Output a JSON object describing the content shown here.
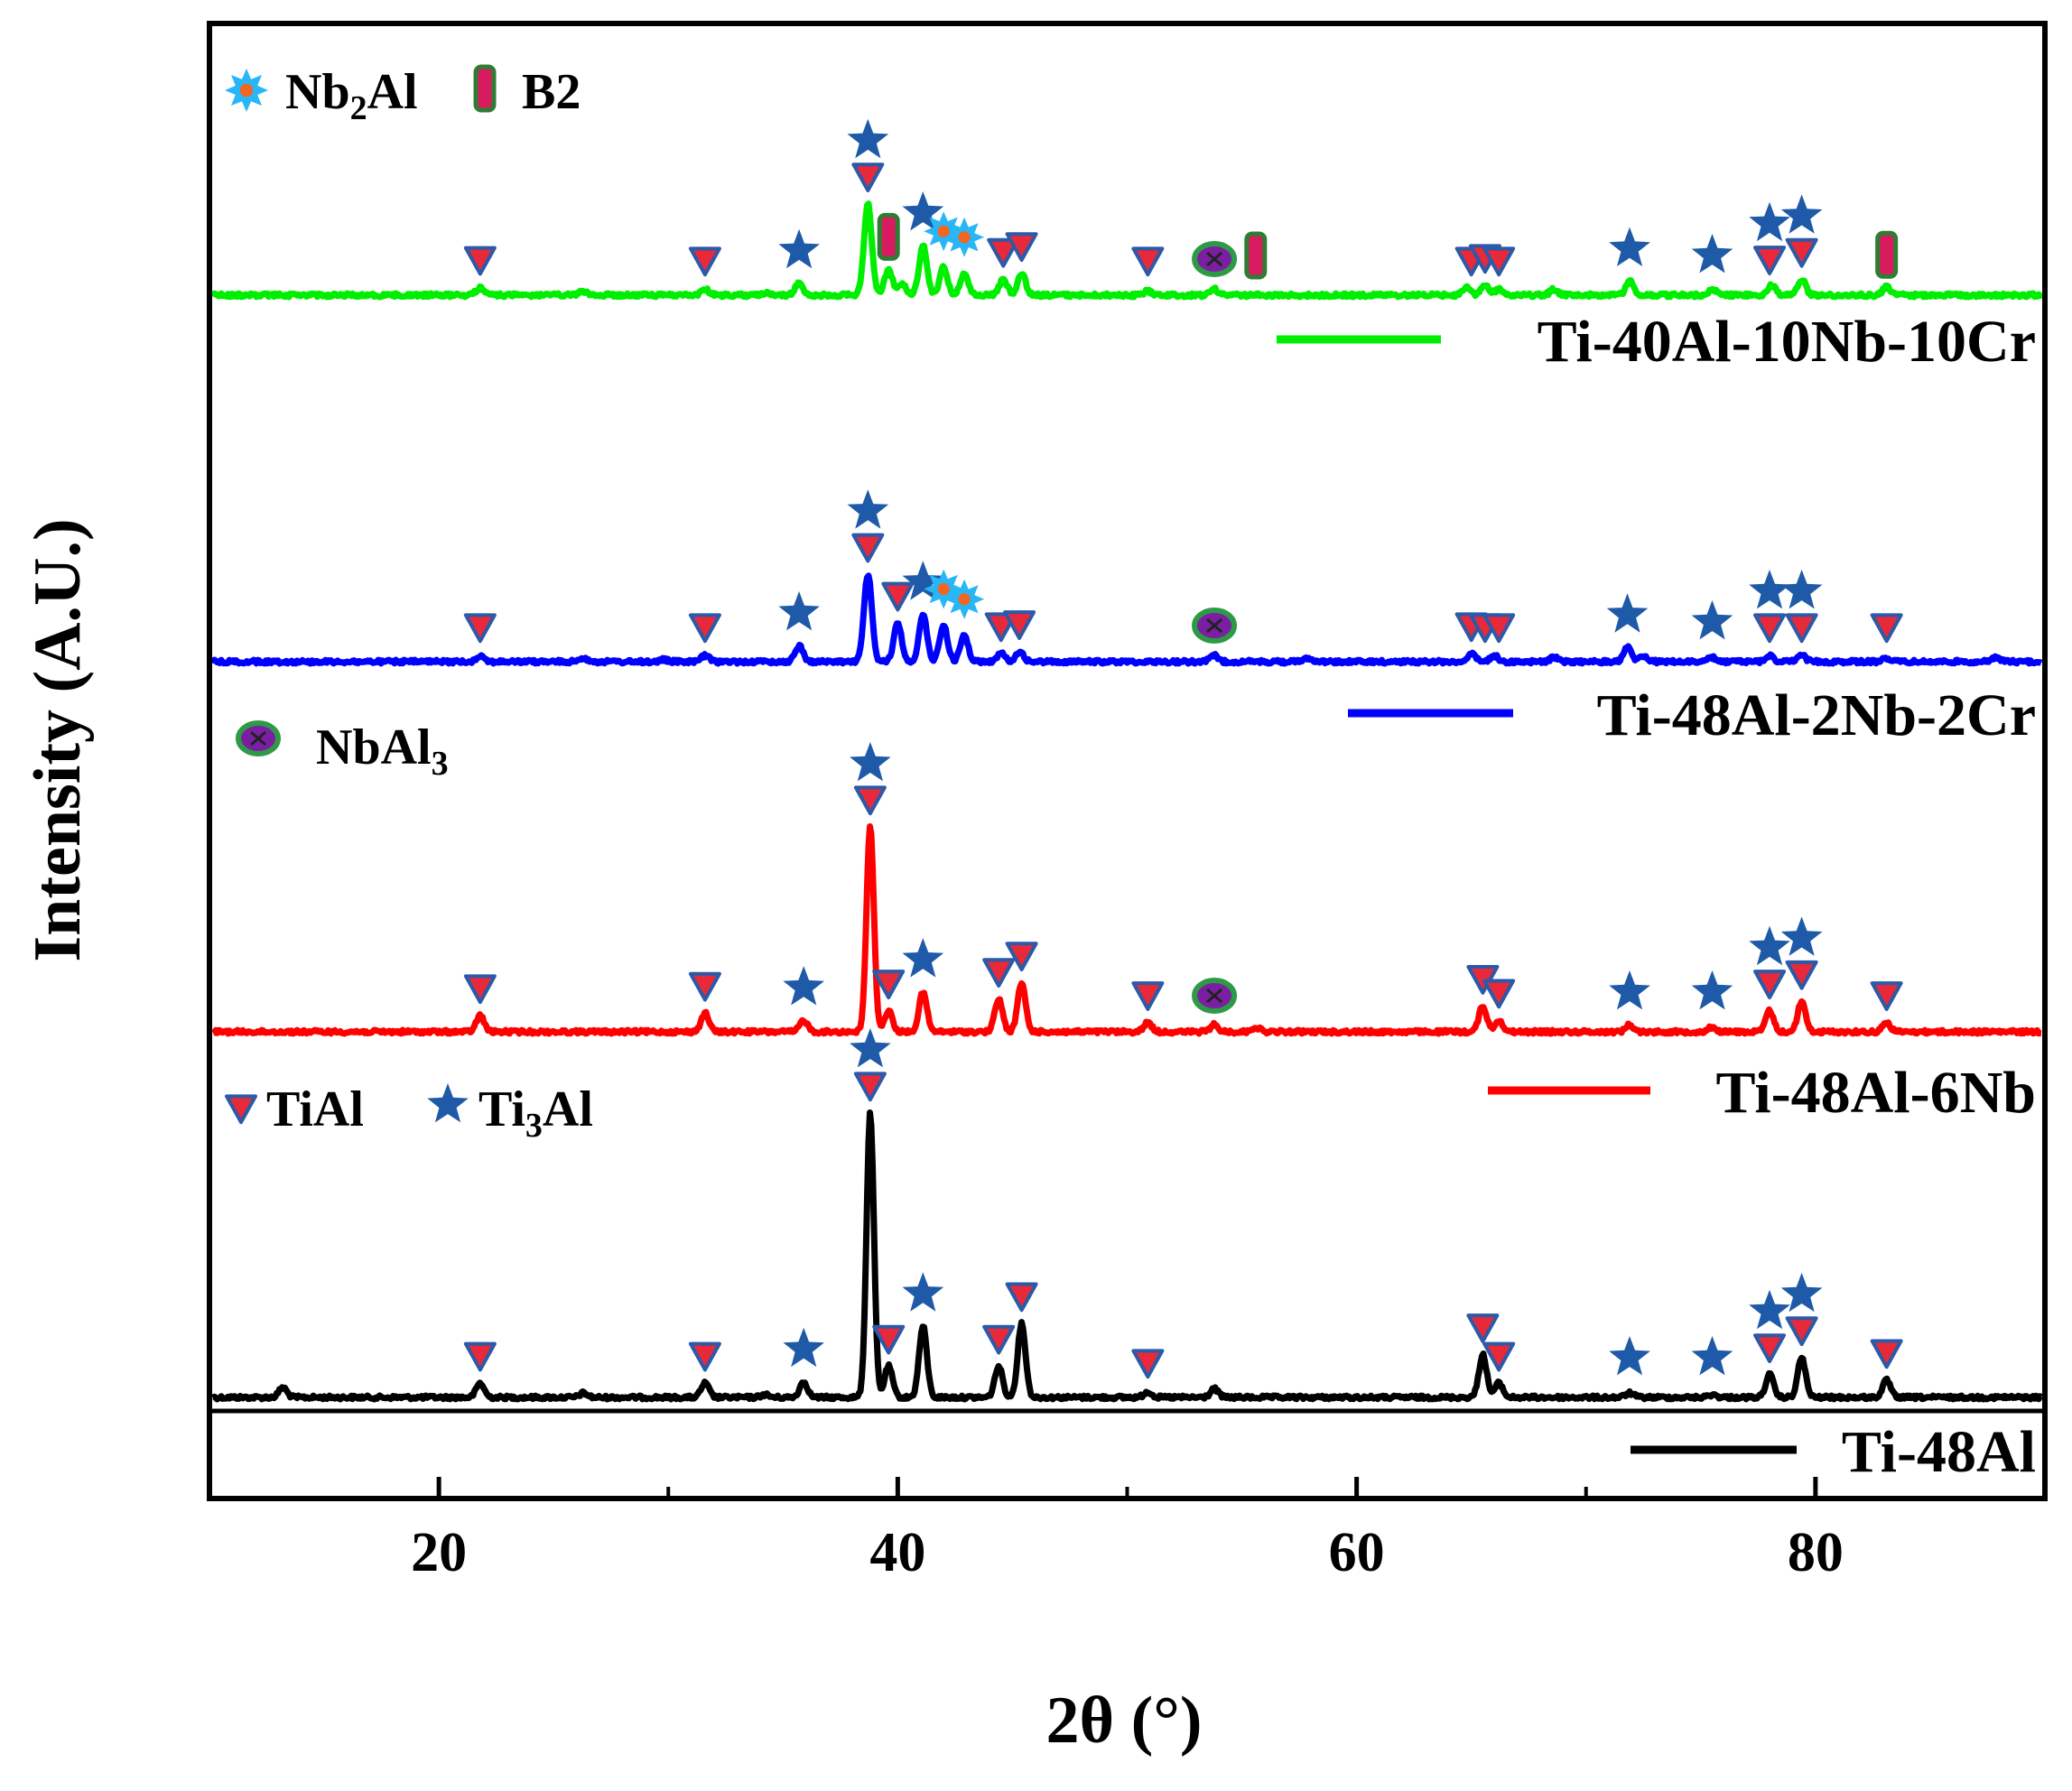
{
  "chart_data": {
    "type": "line",
    "title": "",
    "xlabel": "2θ (°)",
    "ylabel": "Intensity (A.U.)",
    "xlim": [
      10,
      90
    ],
    "xticks": [
      20,
      40,
      60,
      80
    ],
    "xtick_labels": [
      "20",
      "40",
      "60",
      "80"
    ],
    "yticks_shown": false,
    "series": [
      {
        "name": "Ti-48Al",
        "color": "#000000",
        "baseline_offset": 0,
        "scale": 1.0,
        "peaks": [
          {
            "x": 13.2,
            "h": 0.035
          },
          {
            "x": 21.8,
            "h": 0.05
          },
          {
            "x": 26.3,
            "h": 0.015
          },
          {
            "x": 31.6,
            "h": 0.05
          },
          {
            "x": 34.2,
            "h": 0.01
          },
          {
            "x": 35.9,
            "h": 0.055
          },
          {
            "x": 38.8,
            "h": 1.0
          },
          {
            "x": 39.6,
            "h": 0.11
          },
          {
            "x": 41.1,
            "h": 0.25
          },
          {
            "x": 44.4,
            "h": 0.11
          },
          {
            "x": 45.4,
            "h": 0.26
          },
          {
            "x": 50.9,
            "h": 0.02
          },
          {
            "x": 53.8,
            "h": 0.03
          },
          {
            "x": 65.5,
            "h": 0.15
          },
          {
            "x": 66.2,
            "h": 0.05
          },
          {
            "x": 71.9,
            "h": 0.015
          },
          {
            "x": 75.5,
            "h": 0.01
          },
          {
            "x": 78.0,
            "h": 0.08
          },
          {
            "x": 79.4,
            "h": 0.14
          },
          {
            "x": 83.1,
            "h": 0.06
          }
        ]
      },
      {
        "name": "Ti-48Al-6Nb",
        "color": "#ff0000",
        "baseline_offset": 1,
        "scale": 1.0,
        "peaks": [
          {
            "x": 21.8,
            "h": 0.07
          },
          {
            "x": 31.6,
            "h": 0.08
          },
          {
            "x": 35.9,
            "h": 0.05
          },
          {
            "x": 38.8,
            "h": 0.88
          },
          {
            "x": 39.6,
            "h": 0.09
          },
          {
            "x": 41.1,
            "h": 0.17
          },
          {
            "x": 44.4,
            "h": 0.14
          },
          {
            "x": 45.4,
            "h": 0.21
          },
          {
            "x": 50.9,
            "h": 0.04
          },
          {
            "x": 53.8,
            "h": 0.03
          },
          {
            "x": 55.6,
            "h": 0.02
          },
          {
            "x": 65.5,
            "h": 0.11
          },
          {
            "x": 66.2,
            "h": 0.05
          },
          {
            "x": 71.9,
            "h": 0.03
          },
          {
            "x": 75.5,
            "h": 0.02
          },
          {
            "x": 78.0,
            "h": 0.09
          },
          {
            "x": 79.4,
            "h": 0.13
          },
          {
            "x": 83.1,
            "h": 0.04
          }
        ]
      },
      {
        "name": "Ti-48Al-2Nb-2Cr",
        "color": "#0000ff",
        "baseline_offset": 2,
        "scale": 1.0,
        "peaks": [
          {
            "x": 21.8,
            "h": 0.03
          },
          {
            "x": 26.3,
            "h": 0.02
          },
          {
            "x": 29.8,
            "h": 0.01
          },
          {
            "x": 31.6,
            "h": 0.03
          },
          {
            "x": 35.7,
            "h": 0.08
          },
          {
            "x": 38.7,
            "h": 0.43
          },
          {
            "x": 40.0,
            "h": 0.19
          },
          {
            "x": 41.1,
            "h": 0.23
          },
          {
            "x": 42.0,
            "h": 0.18
          },
          {
            "x": 42.9,
            "h": 0.13
          },
          {
            "x": 44.5,
            "h": 0.04
          },
          {
            "x": 45.3,
            "h": 0.05
          },
          {
            "x": 53.8,
            "h": 0.03
          },
          {
            "x": 57.9,
            "h": 0.02
          },
          {
            "x": 65.0,
            "h": 0.04
          },
          {
            "x": 66.0,
            "h": 0.03
          },
          {
            "x": 68.6,
            "h": 0.02
          },
          {
            "x": 71.8,
            "h": 0.07
          },
          {
            "x": 72.5,
            "h": 0.03
          },
          {
            "x": 75.5,
            "h": 0.02
          },
          {
            "x": 78.0,
            "h": 0.03
          },
          {
            "x": 79.4,
            "h": 0.03
          },
          {
            "x": 83.1,
            "h": 0.02
          },
          {
            "x": 87.9,
            "h": 0.02
          }
        ]
      },
      {
        "name": "Ti-40Al-10Nb-10Cr",
        "color": "#00ee00",
        "baseline_offset": 3,
        "scale": 1.0,
        "peaks": [
          {
            "x": 21.8,
            "h": 0.04
          },
          {
            "x": 26.3,
            "h": 0.02
          },
          {
            "x": 31.6,
            "h": 0.03
          },
          {
            "x": 34.2,
            "h": 0.01
          },
          {
            "x": 35.7,
            "h": 0.06
          },
          {
            "x": 38.7,
            "h": 0.46
          },
          {
            "x": 39.6,
            "h": 0.13
          },
          {
            "x": 40.2,
            "h": 0.06
          },
          {
            "x": 41.1,
            "h": 0.25
          },
          {
            "x": 42.0,
            "h": 0.14
          },
          {
            "x": 42.9,
            "h": 0.11
          },
          {
            "x": 44.6,
            "h": 0.08
          },
          {
            "x": 45.4,
            "h": 0.11
          },
          {
            "x": 50.9,
            "h": 0.02
          },
          {
            "x": 53.8,
            "h": 0.03
          },
          {
            "x": 64.8,
            "h": 0.04
          },
          {
            "x": 65.6,
            "h": 0.05
          },
          {
            "x": 66.2,
            "h": 0.03
          },
          {
            "x": 68.6,
            "h": 0.03
          },
          {
            "x": 71.9,
            "h": 0.07
          },
          {
            "x": 75.5,
            "h": 0.03
          },
          {
            "x": 78.1,
            "h": 0.05
          },
          {
            "x": 79.4,
            "h": 0.08
          },
          {
            "x": 83.1,
            "h": 0.04
          }
        ]
      }
    ],
    "phase_markers": {
      "Ti-48Al": [
        {
          "phase": "TiAl",
          "x": 21.8
        },
        {
          "phase": "TiAl",
          "x": 31.6
        },
        {
          "phase": "Ti3Al",
          "x": 35.9
        },
        {
          "phase": "TiAl",
          "x": 38.8
        },
        {
          "phase": "Ti3Al",
          "x": 38.8
        },
        {
          "phase": "TiAl",
          "x": 39.6
        },
        {
          "phase": "Ti3Al",
          "x": 41.1
        },
        {
          "phase": "TiAl",
          "x": 44.4
        },
        {
          "phase": "TiAl",
          "x": 45.4
        },
        {
          "phase": "TiAl",
          "x": 50.9
        },
        {
          "phase": "TiAl",
          "x": 65.5
        },
        {
          "phase": "TiAl",
          "x": 66.2
        },
        {
          "phase": "Ti3Al",
          "x": 71.9
        },
        {
          "phase": "Ti3Al",
          "x": 75.5
        },
        {
          "phase": "TiAl",
          "x": 78.0
        },
        {
          "phase": "Ti3Al",
          "x": 78.0
        },
        {
          "phase": "TiAl",
          "x": 79.4
        },
        {
          "phase": "Ti3Al",
          "x": 79.4
        },
        {
          "phase": "TiAl",
          "x": 83.1
        }
      ],
      "Ti-48Al-6Nb": [
        {
          "phase": "TiAl",
          "x": 21.8
        },
        {
          "phase": "TiAl",
          "x": 31.6
        },
        {
          "phase": "Ti3Al",
          "x": 35.9
        },
        {
          "phase": "TiAl",
          "x": 38.8
        },
        {
          "phase": "Ti3Al",
          "x": 38.8
        },
        {
          "phase": "TiAl",
          "x": 39.6
        },
        {
          "phase": "Ti3Al",
          "x": 41.1
        },
        {
          "phase": "TiAl",
          "x": 44.4
        },
        {
          "phase": "TiAl",
          "x": 45.4
        },
        {
          "phase": "TiAl",
          "x": 50.9
        },
        {
          "phase": "NbAl3",
          "x": 53.8
        },
        {
          "phase": "TiAl",
          "x": 65.5
        },
        {
          "phase": "TiAl",
          "x": 66.2
        },
        {
          "phase": "Ti3Al",
          "x": 71.9
        },
        {
          "phase": "Ti3Al",
          "x": 75.5
        },
        {
          "phase": "TiAl",
          "x": 78.0
        },
        {
          "phase": "Ti3Al",
          "x": 78.0
        },
        {
          "phase": "TiAl",
          "x": 79.4
        },
        {
          "phase": "Ti3Al",
          "x": 79.4
        },
        {
          "phase": "TiAl",
          "x": 83.1
        }
      ],
      "Ti-48Al-2Nb-2Cr": [
        {
          "phase": "TiAl",
          "x": 21.8
        },
        {
          "phase": "TiAl",
          "x": 31.6
        },
        {
          "phase": "Ti3Al",
          "x": 35.7
        },
        {
          "phase": "TiAl",
          "x": 38.7
        },
        {
          "phase": "Ti3Al",
          "x": 38.7
        },
        {
          "phase": "TiAl",
          "x": 40.0
        },
        {
          "phase": "Ti3Al",
          "x": 41.1
        },
        {
          "phase": "Nb2Al",
          "x": 42.0
        },
        {
          "phase": "Nb2Al",
          "x": 42.9
        },
        {
          "phase": "TiAl",
          "x": 44.5
        },
        {
          "phase": "TiAl",
          "x": 45.3
        },
        {
          "phase": "NbAl3",
          "x": 53.8
        },
        {
          "phase": "TiAl",
          "x": 65.0
        },
        {
          "phase": "TiAl",
          "x": 65.6
        },
        {
          "phase": "TiAl",
          "x": 66.2
        },
        {
          "phase": "Ti3Al",
          "x": 71.8
        },
        {
          "phase": "Ti3Al",
          "x": 75.5
        },
        {
          "phase": "TiAl",
          "x": 78.0
        },
        {
          "phase": "Ti3Al",
          "x": 78.0
        },
        {
          "phase": "TiAl",
          "x": 79.4
        },
        {
          "phase": "Ti3Al",
          "x": 79.4
        },
        {
          "phase": "TiAl",
          "x": 83.1
        }
      ],
      "Ti-40Al-10Nb-10Cr": [
        {
          "phase": "TiAl",
          "x": 21.8
        },
        {
          "phase": "TiAl",
          "x": 31.6
        },
        {
          "phase": "Ti3Al",
          "x": 35.7
        },
        {
          "phase": "TiAl",
          "x": 38.7
        },
        {
          "phase": "Ti3Al",
          "x": 38.7
        },
        {
          "phase": "B2",
          "x": 39.6
        },
        {
          "phase": "Ti3Al",
          "x": 41.1
        },
        {
          "phase": "Nb2Al",
          "x": 42.0
        },
        {
          "phase": "Nb2Al",
          "x": 42.9
        },
        {
          "phase": "TiAl",
          "x": 44.6
        },
        {
          "phase": "TiAl",
          "x": 45.4
        },
        {
          "phase": "TiAl",
          "x": 50.9
        },
        {
          "phase": "NbAl3",
          "x": 53.8
        },
        {
          "phase": "B2",
          "x": 55.6
        },
        {
          "phase": "TiAl",
          "x": 65.0
        },
        {
          "phase": "TiAl",
          "x": 65.6
        },
        {
          "phase": "TiAl",
          "x": 66.2
        },
        {
          "phase": "Ti3Al",
          "x": 71.9
        },
        {
          "phase": "Ti3Al",
          "x": 75.5
        },
        {
          "phase": "TiAl",
          "x": 78.0
        },
        {
          "phase": "Ti3Al",
          "x": 78.0
        },
        {
          "phase": "TiAl",
          "x": 79.4
        },
        {
          "phase": "Ti3Al",
          "x": 79.4
        },
        {
          "phase": "B2",
          "x": 83.1
        }
      ]
    },
    "phase_legend": [
      {
        "key": "Nb2Al",
        "label_main": "Nb",
        "label_sub": "2",
        "label_tail": "Al"
      },
      {
        "key": "B2",
        "label_main": "B2",
        "label_sub": "",
        "label_tail": ""
      },
      {
        "key": "NbAl3",
        "label_main": "NbAl",
        "label_sub": "3",
        "label_tail": ""
      },
      {
        "key": "TiAl",
        "label_main": "TiAl",
        "label_sub": "",
        "label_tail": ""
      },
      {
        "key": "Ti3Al",
        "label_main": "Ti",
        "label_sub": "3",
        "label_tail": "Al"
      }
    ]
  },
  "colors": {
    "tial_marker_fill": "#e8293a",
    "tial_marker_stroke": "#2a5aa8",
    "ti3al_star": "#1e5aa8",
    "nb2al_star": "#29b6f6",
    "nb2al_core": "#f26522",
    "b2_fill": "#d81b60",
    "b2_stroke": "#2e7d32",
    "nbal3_fill": "#7b1fa2",
    "nbal3_ring": "#2e9a46"
  }
}
